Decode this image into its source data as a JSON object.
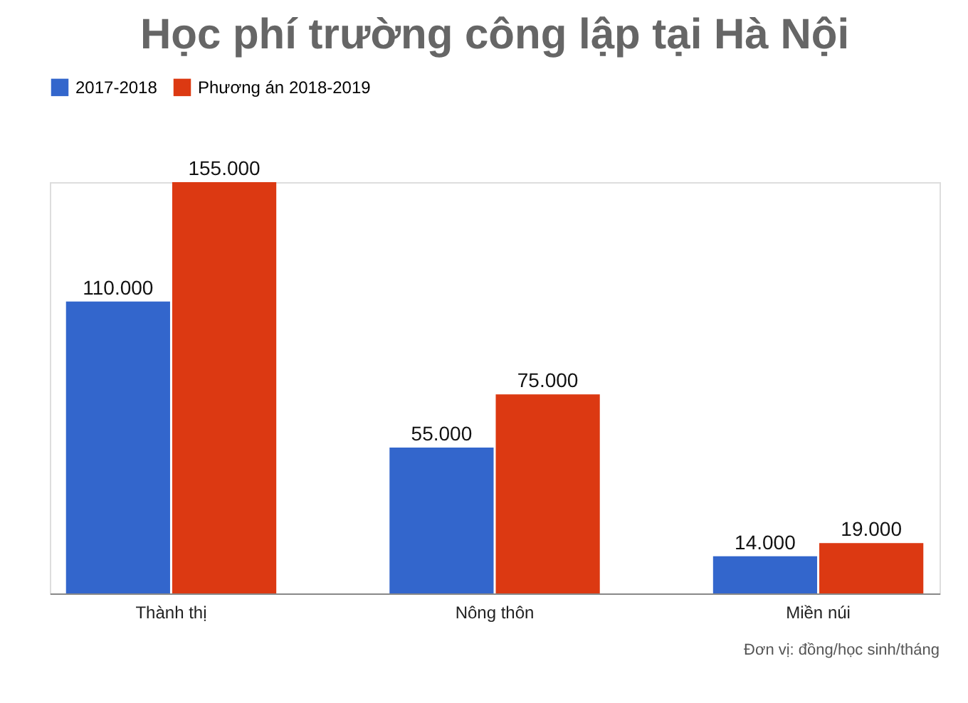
{
  "chart_data": {
    "type": "bar",
    "title": "Học phí trường công lập tại Hà Nội",
    "categories": [
      "Thành thị",
      "Nông thôn",
      "Miền núi"
    ],
    "series": [
      {
        "name": "2017-2018",
        "color": "#3366cc",
        "values": [
          110000,
          55000,
          14000
        ],
        "value_labels": [
          "110.000",
          "55.000",
          "14.000"
        ]
      },
      {
        "name": "Phương án 2018-2019",
        "color": "#dc3912",
        "values": [
          155000,
          75000,
          19000
        ],
        "value_labels": [
          "155.000",
          "75.000",
          "19.000"
        ]
      }
    ],
    "legend": "top",
    "grid": false,
    "annotations": [
      "Đơn vị: đồng/học sinh/tháng"
    ]
  }
}
